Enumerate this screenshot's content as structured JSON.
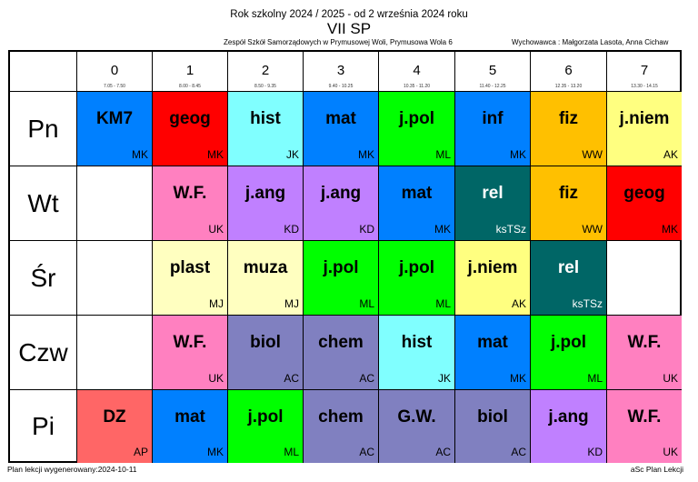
{
  "header": {
    "school_year": "Rok szkolny 2024 / 2025 - od 2 września 2024 roku",
    "class_name": "VII SP",
    "institution": "Zespół Szkół Samorządowych w Prymusowej Woli, Prymusowa Wola 6",
    "teachers": "Wychowawca : Małgorzata Lasota, Anna Cichaw"
  },
  "periods": [
    {
      "num": "0",
      "time": "7.05 - 7.50"
    },
    {
      "num": "1",
      "time": "8.00 - 8.45"
    },
    {
      "num": "2",
      "time": "8.50 - 9.35"
    },
    {
      "num": "3",
      "time": "9.40 - 10.25"
    },
    {
      "num": "4",
      "time": "10.35 - 11.20"
    },
    {
      "num": "5",
      "time": "11.40 - 12.25"
    },
    {
      "num": "6",
      "time": "12.35 - 13.20"
    },
    {
      "num": "7",
      "time": "13.30 - 14.15"
    }
  ],
  "days": [
    {
      "name": "Pn",
      "lessons": [
        {
          "subject": "KM7",
          "teacher": "MK",
          "color": "#0080ff"
        },
        {
          "subject": "geog",
          "teacher": "MK",
          "color": "#ff0000"
        },
        {
          "subject": "hist",
          "teacher": "JK",
          "color": "#80ffff"
        },
        {
          "subject": "mat",
          "teacher": "MK",
          "color": "#0080ff"
        },
        {
          "subject": "j.pol",
          "teacher": "ML",
          "color": "#00ff00"
        },
        {
          "subject": "inf",
          "teacher": "MK",
          "color": "#0080ff"
        },
        {
          "subject": "fiz",
          "teacher": "WW",
          "color": "#ffc000"
        },
        {
          "subject": "j.niem",
          "teacher": "AK",
          "color": "#ffff80"
        }
      ]
    },
    {
      "name": "Wt",
      "lessons": [
        null,
        {
          "subject": "W.F.",
          "teacher": "UK",
          "color": "#ff80c0"
        },
        {
          "subject": "j.ang",
          "teacher": "KD",
          "color": "#c080ff"
        },
        {
          "subject": "j.ang",
          "teacher": "KD",
          "color": "#c080ff"
        },
        {
          "subject": "mat",
          "teacher": "MK",
          "color": "#0080ff"
        },
        {
          "subject": "rel",
          "teacher": "ksTSz",
          "color": "#006666"
        },
        {
          "subject": "fiz",
          "teacher": "WW",
          "color": "#ffc000"
        },
        {
          "subject": "geog",
          "teacher": "MK",
          "color": "#ff0000"
        }
      ]
    },
    {
      "name": "Śr",
      "lessons": [
        null,
        {
          "subject": "plast",
          "teacher": "MJ",
          "color": "#ffffc0"
        },
        {
          "subject": "muza",
          "teacher": "MJ",
          "color": "#ffffc0"
        },
        {
          "subject": "j.pol",
          "teacher": "ML",
          "color": "#00ff00"
        },
        {
          "subject": "j.pol",
          "teacher": "ML",
          "color": "#00ff00"
        },
        {
          "subject": "j.niem",
          "teacher": "AK",
          "color": "#ffff80"
        },
        {
          "subject": "rel",
          "teacher": "ksTSz",
          "color": "#006666"
        },
        null
      ]
    },
    {
      "name": "Czw",
      "lessons": [
        null,
        {
          "subject": "W.F.",
          "teacher": "UK",
          "color": "#ff80c0"
        },
        {
          "subject": "biol",
          "teacher": "AC",
          "color": "#8080c0"
        },
        {
          "subject": "chem",
          "teacher": "AC",
          "color": "#8080c0"
        },
        {
          "subject": "hist",
          "teacher": "JK",
          "color": "#80ffff"
        },
        {
          "subject": "mat",
          "teacher": "MK",
          "color": "#0080ff"
        },
        {
          "subject": "j.pol",
          "teacher": "ML",
          "color": "#00ff00"
        },
        {
          "subject": "W.F.",
          "teacher": "UK",
          "color": "#ff80c0"
        }
      ]
    },
    {
      "name": "Pi",
      "lessons": [
        {
          "subject": "DZ",
          "teacher": "AP",
          "color": "#ff6666"
        },
        {
          "subject": "mat",
          "teacher": "MK",
          "color": "#0080ff"
        },
        {
          "subject": "j.pol",
          "teacher": "ML",
          "color": "#00ff00"
        },
        {
          "subject": "chem",
          "teacher": "AC",
          "color": "#8080c0"
        },
        {
          "subject": "G.W.",
          "teacher": "AC",
          "color": "#8080c0"
        },
        {
          "subject": "biol",
          "teacher": "AC",
          "color": "#8080c0"
        },
        {
          "subject": "j.ang",
          "teacher": "KD",
          "color": "#c080ff"
        },
        {
          "subject": "W.F.",
          "teacher": "UK",
          "color": "#ff80c0"
        }
      ]
    }
  ],
  "footer": {
    "generated": "Plan lekcji wygenerowany:2024-10-11",
    "software": "aSc Plan Lekcji"
  }
}
